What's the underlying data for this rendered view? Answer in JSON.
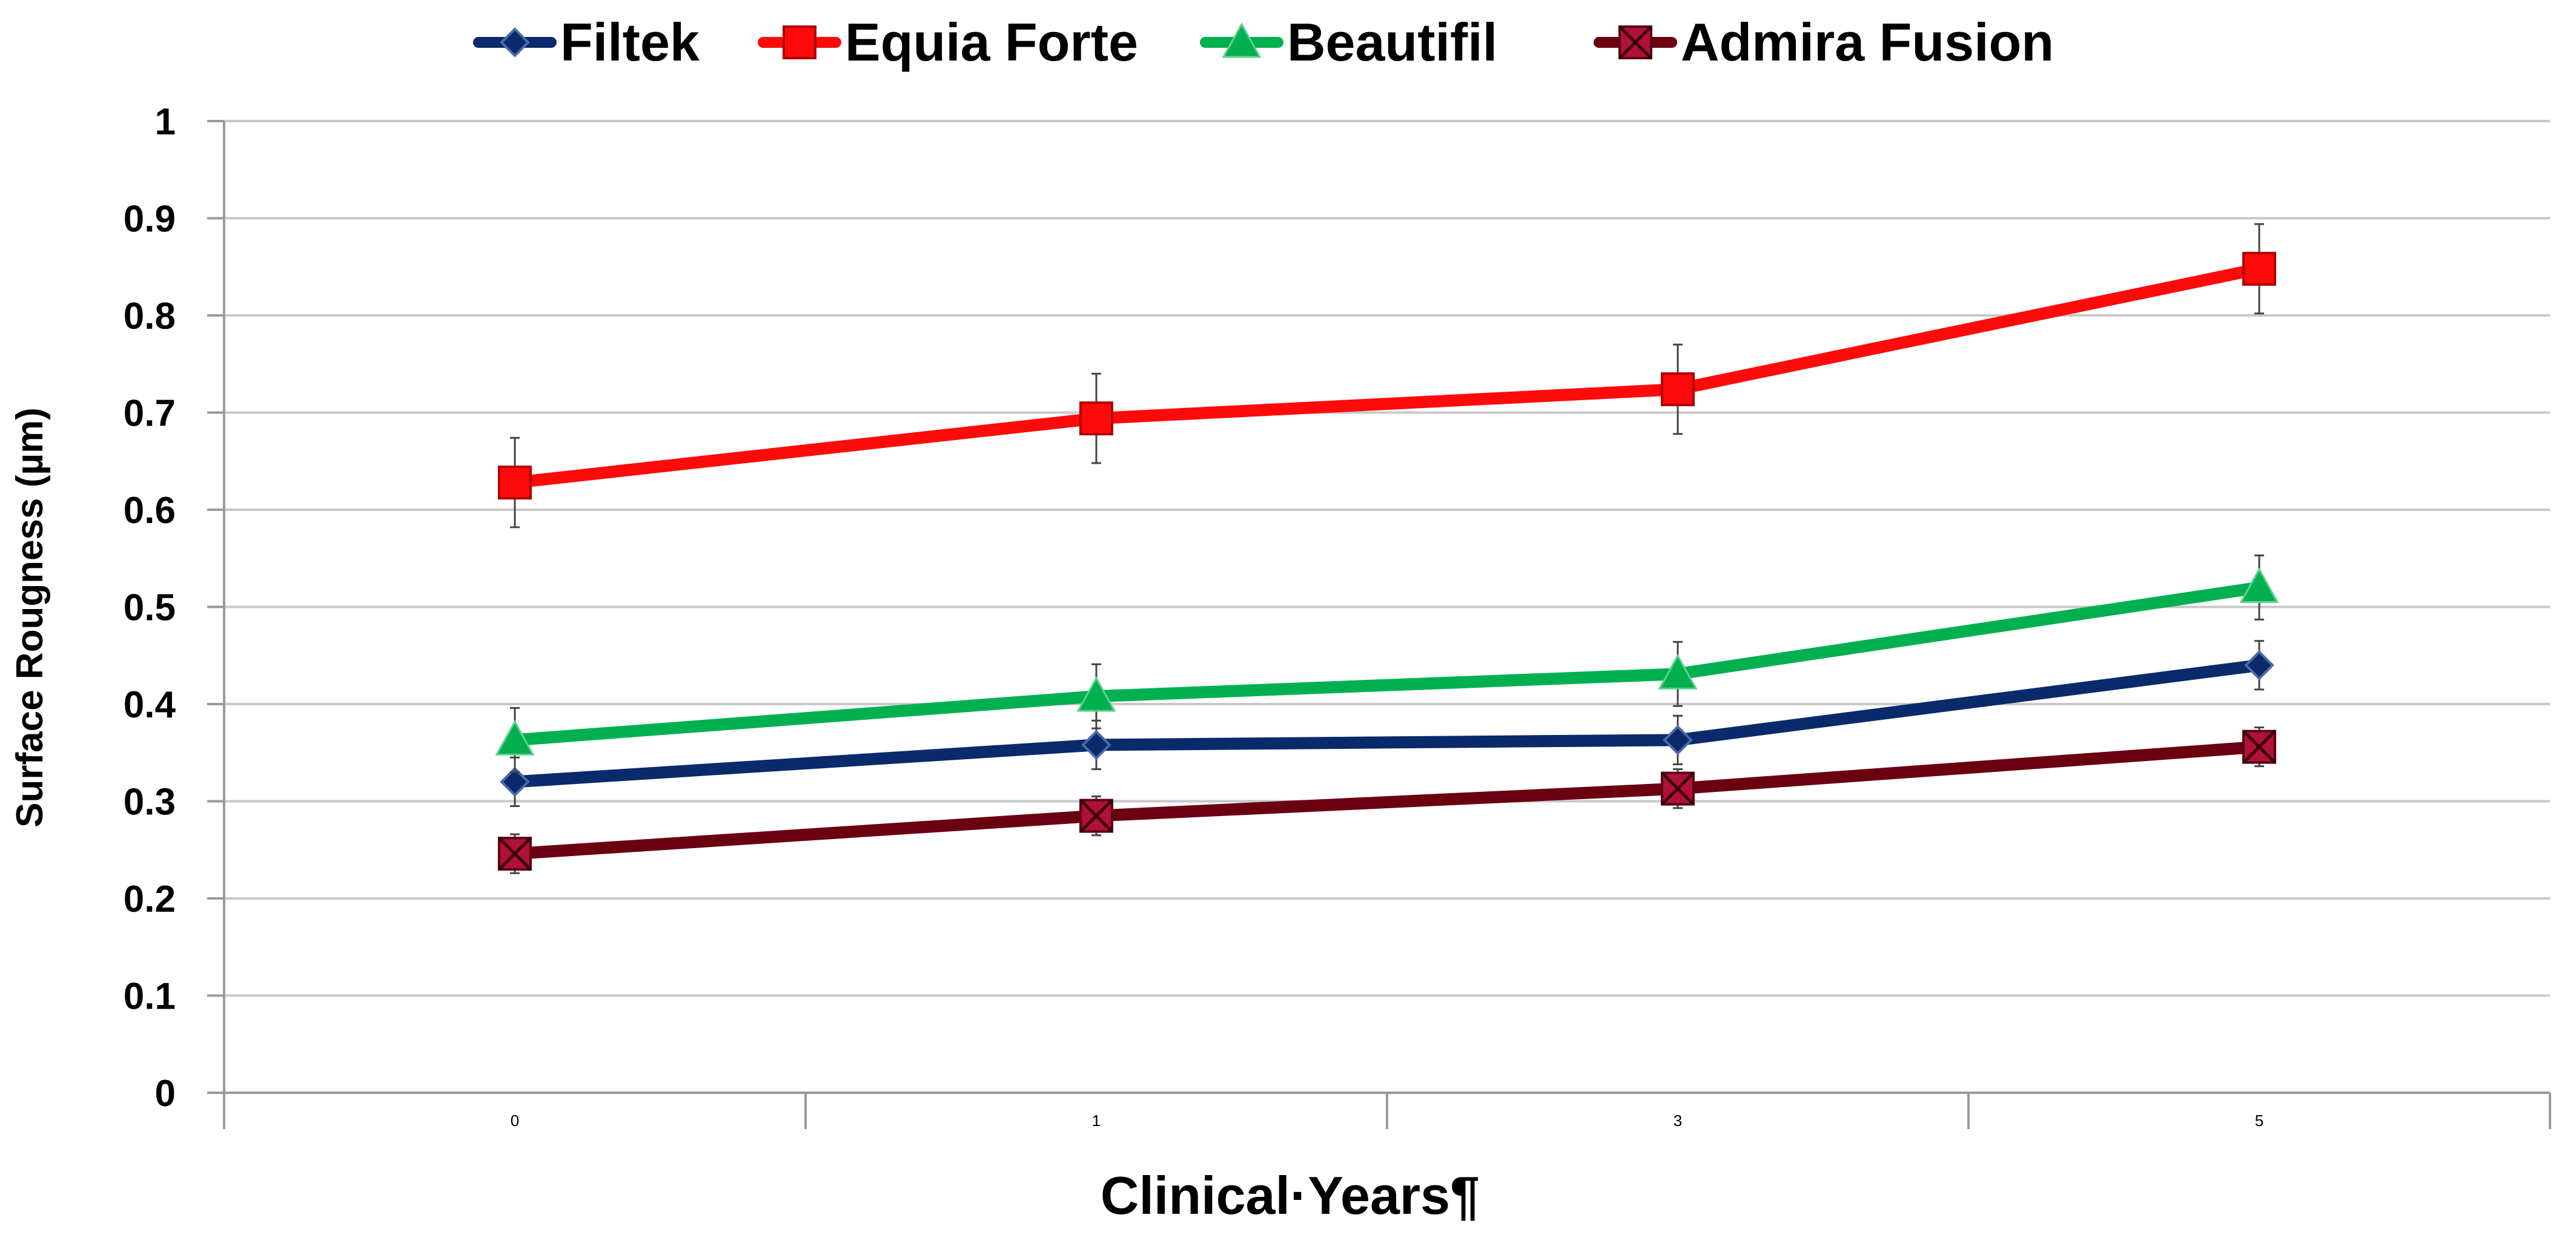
{
  "chart_data": {
    "type": "line",
    "title": "",
    "xlabel": "Clinical·Years¶",
    "ylabel": "Surface Rougness (µm)",
    "categories": [
      "0",
      "1",
      "3",
      "5"
    ],
    "ylim": [
      0,
      1
    ],
    "yticks": [
      "0",
      "0.1",
      "0.2",
      "0.3",
      "0.4",
      "0.5",
      "0.6",
      "0.7",
      "0.8",
      "0.9",
      "1"
    ],
    "grid": true,
    "legend_position": "top",
    "series": [
      {
        "name": "Filtek",
        "color": "#0b2a6b",
        "marker": "diamond",
        "values": [
          0.32,
          0.358,
          0.363,
          0.44
        ],
        "errors": [
          0.025,
          0.025,
          0.025,
          0.025
        ]
      },
      {
        "name": "Equia Forte",
        "color": "#ff0a0a",
        "marker": "square",
        "values": [
          0.628,
          0.694,
          0.724,
          0.848
        ],
        "errors": [
          0.046,
          0.046,
          0.046,
          0.046
        ]
      },
      {
        "name": "Beautifil",
        "color": "#00b050",
        "marker": "triangle",
        "values": [
          0.363,
          0.408,
          0.431,
          0.52
        ],
        "errors": [
          0.033,
          0.033,
          0.033,
          0.033
        ]
      },
      {
        "name": "Admira Fusion",
        "color": "#6b0010",
        "marker": "x-square",
        "values": [
          0.246,
          0.285,
          0.313,
          0.356
        ],
        "errors": [
          0.02,
          0.02,
          0.02,
          0.02
        ]
      }
    ]
  }
}
